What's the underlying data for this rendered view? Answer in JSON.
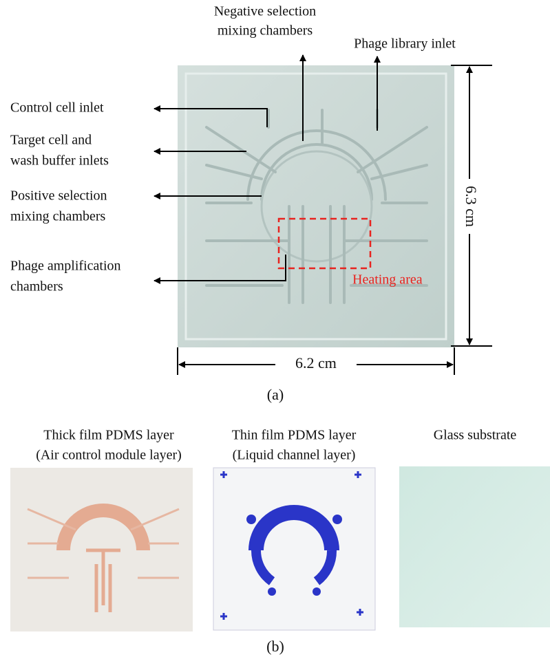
{
  "figure_a": {
    "negative_selection": [
      "Negative selection",
      "mixing chambers"
    ],
    "phage_library": "Phage library inlet",
    "control_cell": "Control cell inlet",
    "target_cell": [
      "Target cell and",
      "wash buffer inlets"
    ],
    "positive_selection": [
      "Positive selection",
      "mixing chambers"
    ],
    "phage_amplification": [
      "Phage amplification",
      "chambers"
    ],
    "heating_area": "Heating area",
    "height": "6.3 cm",
    "width": "6.2 cm",
    "caption": "(a)"
  },
  "figure_b": {
    "panels": [
      {
        "title": [
          "Thick film PDMS layer",
          "(Air control module layer)"
        ]
      },
      {
        "title": [
          "Thin film PDMS layer",
          "(Liquid channel layer)"
        ]
      },
      {
        "title": [
          "Glass substrate"
        ]
      }
    ],
    "caption": "(b)"
  }
}
